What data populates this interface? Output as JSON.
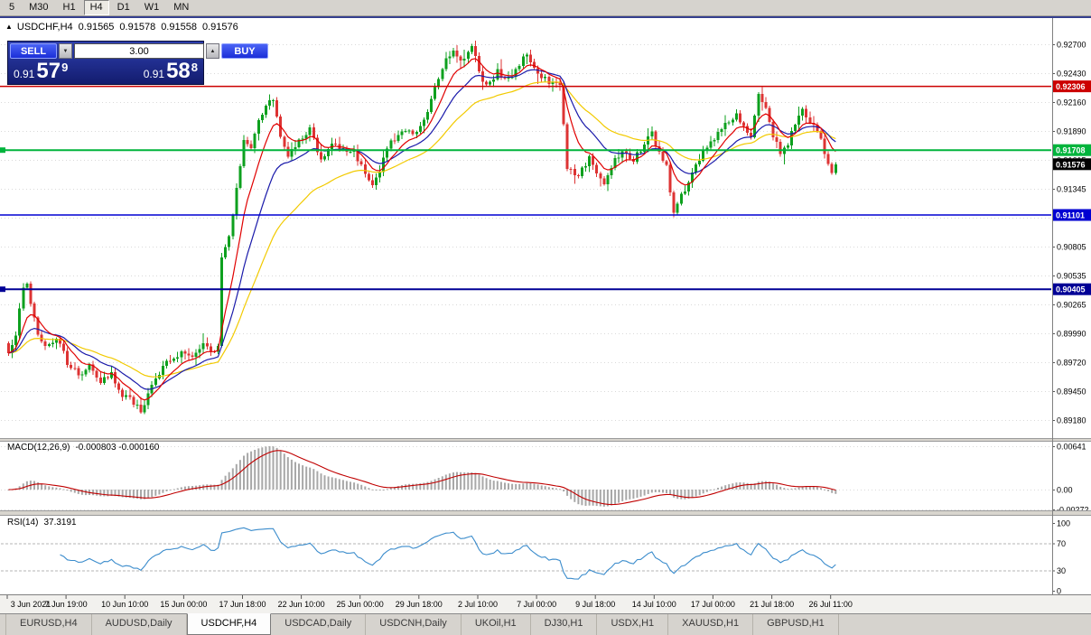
{
  "toolbar": {
    "timeframes": [
      "5",
      "M30",
      "H1",
      "H4",
      "D1",
      "W1",
      "MN"
    ],
    "active": "H4"
  },
  "chart_header": {
    "symbol_period": "USDCHF,H4",
    "open": "0.91565",
    "high": "0.91578",
    "low": "0.91558",
    "close": "0.91576"
  },
  "trade_panel": {
    "sell_label": "SELL",
    "buy_label": "BUY",
    "volume": "3.00",
    "bid_prefix": "0.91",
    "bid_big": "57",
    "bid_pip": "9",
    "ask_prefix": "0.91",
    "ask_big": "58",
    "ask_pip": "8"
  },
  "icons": {
    "collapse": "▲",
    "spin_up": "▲",
    "spin_down": "▼"
  },
  "price_axis_labels": [
    "0.92700",
    "0.92430",
    "0.92160",
    "0.91890",
    "0.91615",
    "0.91345",
    "0.91075",
    "0.90805",
    "0.90535",
    "0.90265",
    "0.89990",
    "0.89720",
    "0.89450",
    "0.89180"
  ],
  "hlines": [
    {
      "price": "0.92306",
      "value": 0.92306,
      "color": "#cc0000",
      "width": 1.5,
      "marker": false
    },
    {
      "price": "0.91708",
      "value": 0.91708,
      "color": "#00b43c",
      "width": 2,
      "marker": true
    },
    {
      "price": "0.91101",
      "value": 0.91101,
      "color": "#0000d2",
      "width": 1.5,
      "marker": false
    },
    {
      "price": "0.90405",
      "value": 0.90405,
      "color": "#000096",
      "width": 2,
      "marker": true
    }
  ],
  "current_price": {
    "text": "0.91576",
    "value": 0.91576,
    "bg": "#000000",
    "fg": "#ffffff"
  },
  "indicators": {
    "macd": {
      "name": "MACD(12,26,9)",
      "values": "-0.000803 -0.000160",
      "scale": [
        "0.00641",
        "0.00",
        "-0.00272"
      ]
    },
    "rsi": {
      "name": "RSI(14)",
      "value": "37.3191",
      "scale": [
        "100",
        "70",
        "30",
        "0"
      ],
      "upper": 70,
      "lower": 30
    }
  },
  "time_axis_labels": [
    "3 Jun 2021",
    "7 Jun 19:00",
    "10 Jun 10:00",
    "15 Jun 00:00",
    "17 Jun 18:00",
    "22 Jun 10:00",
    "25 Jun 00:00",
    "29 Jun 18:00",
    "2 Jul 10:00",
    "7 Jul 00:00",
    "9 Jul 18:00",
    "14 Jul 10:00",
    "17 Jul 00:00",
    "21 Jul 18:00",
    "26 Jul 11:00"
  ],
  "tabs": [
    "EURUSD,H4",
    "AUDUSD,Daily",
    "USDCHF,H4",
    "USDCAD,Daily",
    "USDCNH,Daily",
    "UKOil,H1",
    "DJ30,H1",
    "USDX,H1",
    "XAUUSD,H1",
    "GBPUSD,H1"
  ],
  "active_tab": "USDCHF,H4",
  "colors": {
    "candle_up": "#0da01e",
    "candle_down": "#dd3333",
    "macd_hist": "#a8a8a8",
    "macd_signal": "#c00000",
    "rsi_line": "#3b8ccc",
    "grid": "#d9d9d9",
    "axis_text": "#000000",
    "axis_strip": "#f2f1ee"
  },
  "chart_data": {
    "type": "candlestick",
    "symbol": "USDCHF",
    "timeframe": "H4",
    "title": "USDCHF,H4",
    "y_range": [
      0.8918,
      0.927
    ],
    "num_candles": 226,
    "seed": 12,
    "last_close": 0.91576,
    "current_ohlc": {
      "open": 0.91565,
      "high": 0.91578,
      "low": 0.91558,
      "close": 0.91576
    },
    "label_every": 16,
    "price_path_anchors": [
      [
        0,
        0.8982
      ],
      [
        2,
        0.9
      ],
      [
        4,
        0.9043
      ],
      [
        5,
        0.9048
      ],
      [
        6,
        0.9028
      ],
      [
        8,
        0.9
      ],
      [
        10,
        0.8988
      ],
      [
        13,
        0.8996
      ],
      [
        16,
        0.8972
      ],
      [
        19,
        0.896
      ],
      [
        22,
        0.897
      ],
      [
        25,
        0.8955
      ],
      [
        28,
        0.8962
      ],
      [
        31,
        0.8942
      ],
      [
        34,
        0.8935
      ],
      [
        36,
        0.8926
      ],
      [
        38,
        0.8942
      ],
      [
        41,
        0.8962
      ],
      [
        44,
        0.8975
      ],
      [
        47,
        0.8982
      ],
      [
        50,
        0.8978
      ],
      [
        53,
        0.899
      ],
      [
        56,
        0.8982
      ],
      [
        57,
        0.899
      ],
      [
        58,
        0.9068
      ],
      [
        60,
        0.9088
      ],
      [
        62,
        0.9135
      ],
      [
        64,
        0.9178
      ],
      [
        66,
        0.917
      ],
      [
        68,
        0.9198
      ],
      [
        70,
        0.9212
      ],
      [
        72,
        0.9218
      ],
      [
        74,
        0.9182
      ],
      [
        76,
        0.9165
      ],
      [
        79,
        0.9178
      ],
      [
        82,
        0.919
      ],
      [
        85,
        0.9163
      ],
      [
        88,
        0.9178
      ],
      [
        91,
        0.917
      ],
      [
        94,
        0.9168
      ],
      [
        97,
        0.915
      ],
      [
        99,
        0.9138
      ],
      [
        101,
        0.9152
      ],
      [
        104,
        0.9178
      ],
      [
        107,
        0.919
      ],
      [
        110,
        0.9185
      ],
      [
        113,
        0.92
      ],
      [
        116,
        0.9228
      ],
      [
        118,
        0.9248
      ],
      [
        121,
        0.9266
      ],
      [
        123,
        0.9252
      ],
      [
        126,
        0.927
      ],
      [
        128,
        0.9244
      ],
      [
        130,
        0.923
      ],
      [
        133,
        0.9244
      ],
      [
        136,
        0.9236
      ],
      [
        139,
        0.925
      ],
      [
        141,
        0.9262
      ],
      [
        144,
        0.9244
      ],
      [
        147,
        0.9235
      ],
      [
        150,
        0.9232
      ],
      [
        152,
        0.9155
      ],
      [
        154,
        0.9146
      ],
      [
        156,
        0.9152
      ],
      [
        158,
        0.9165
      ],
      [
        160,
        0.9147
      ],
      [
        162,
        0.9138
      ],
      [
        164,
        0.9155
      ],
      [
        167,
        0.9172
      ],
      [
        170,
        0.916
      ],
      [
        173,
        0.9178
      ],
      [
        175,
        0.9186
      ],
      [
        177,
        0.9168
      ],
      [
        179,
        0.9155
      ],
      [
        181,
        0.911
      ],
      [
        183,
        0.9128
      ],
      [
        186,
        0.9148
      ],
      [
        189,
        0.9168
      ],
      [
        192,
        0.9182
      ],
      [
        195,
        0.9194
      ],
      [
        198,
        0.9203
      ],
      [
        200,
        0.9192
      ],
      [
        202,
        0.9184
      ],
      [
        204,
        0.9222
      ],
      [
        206,
        0.9212
      ],
      [
        208,
        0.9186
      ],
      [
        210,
        0.9166
      ],
      [
        212,
        0.9178
      ],
      [
        214,
        0.9196
      ],
      [
        216,
        0.9208
      ],
      [
        218,
        0.9198
      ],
      [
        220,
        0.9188
      ],
      [
        222,
        0.917
      ],
      [
        223,
        0.916
      ],
      [
        224,
        0.915
      ],
      [
        225,
        0.91576
      ]
    ],
    "moving_averages": [
      {
        "period": 34,
        "color": "#f2ca00"
      },
      {
        "period": 17,
        "color": "#1a1aaa"
      },
      {
        "period": 8,
        "color": "#e00000"
      }
    ],
    "macd_params": [
      12,
      26,
      9
    ],
    "rsi_period": 14
  }
}
